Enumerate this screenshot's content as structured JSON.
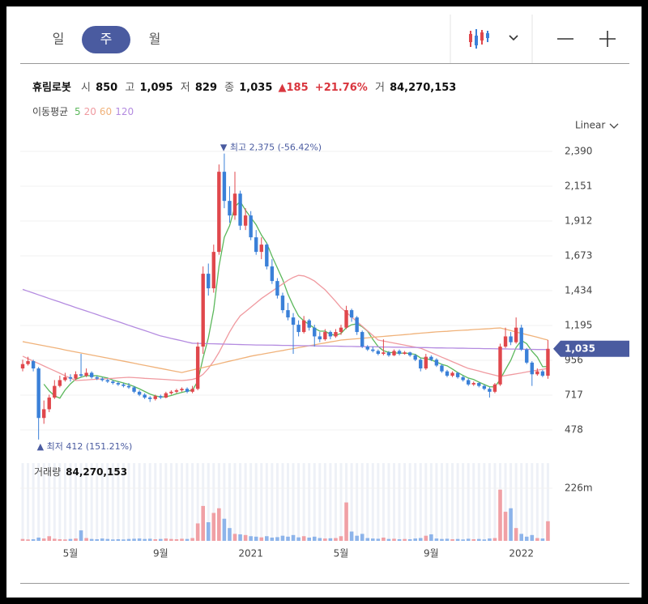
{
  "header": {
    "tabs": [
      "일",
      "주",
      "월"
    ]
  },
  "info": {
    "name": "휴림로봇",
    "open_label": "시",
    "open": "850",
    "high_label": "고",
    "high": "1,095",
    "low_label": "저",
    "low": "829",
    "close_label": "종",
    "close": "1,035",
    "change": "▲185",
    "change_pct": "+21.76%",
    "volume_label": "거",
    "volume": "84,270,153"
  },
  "chart_data": {
    "type": "candlestick",
    "scale_label": "Linear",
    "up_color": "#e0474c",
    "down_color": "#3a80d8",
    "categories": [
      null,
      null,
      null,
      null,
      null,
      null,
      null,
      null,
      null,
      "5월",
      null,
      null,
      null,
      null,
      null,
      null,
      null,
      null,
      null,
      null,
      null,
      null,
      null,
      null,
      null,
      null,
      "9월",
      null,
      null,
      null,
      null,
      null,
      null,
      null,
      null,
      null,
      null,
      null,
      null,
      null,
      null,
      null,
      null,
      "2021",
      null,
      null,
      null,
      null,
      null,
      null,
      null,
      null,
      null,
      null,
      null,
      null,
      null,
      null,
      null,
      null,
      "5월",
      null,
      null,
      null,
      null,
      null,
      null,
      null,
      null,
      null,
      null,
      null,
      null,
      null,
      null,
      null,
      null,
      "9월",
      null,
      null,
      null,
      null,
      null,
      null,
      null,
      null,
      null,
      null,
      null,
      null,
      null,
      null,
      null,
      null,
      "2022",
      null,
      null,
      null,
      null,
      null
    ],
    "ohlc": [
      [
        900,
        960,
        880,
        930
      ],
      [
        930,
        980,
        920,
        950
      ],
      [
        950,
        960,
        880,
        900
      ],
      [
        900,
        910,
        412,
        560
      ],
      [
        560,
        680,
        520,
        620
      ],
      [
        620,
        720,
        600,
        700
      ],
      [
        700,
        820,
        690,
        780
      ],
      [
        780,
        850,
        770,
        820
      ],
      [
        820,
        870,
        810,
        840
      ],
      [
        840,
        860,
        810,
        830
      ],
      [
        830,
        880,
        820,
        860
      ],
      [
        860,
        1000,
        840,
        850
      ],
      [
        850,
        900,
        840,
        870
      ],
      [
        870,
        880,
        830,
        840
      ],
      [
        840,
        850,
        820,
        830
      ],
      [
        830,
        840,
        810,
        820
      ],
      [
        820,
        830,
        800,
        810
      ],
      [
        810,
        820,
        790,
        800
      ],
      [
        800,
        810,
        780,
        790
      ],
      [
        790,
        800,
        770,
        780
      ],
      [
        780,
        800,
        760,
        770
      ],
      [
        770,
        780,
        730,
        740
      ],
      [
        740,
        750,
        710,
        720
      ],
      [
        720,
        730,
        690,
        700
      ],
      [
        700,
        710,
        670,
        690
      ],
      [
        690,
        720,
        680,
        710
      ],
      [
        710,
        720,
        690,
        700
      ],
      [
        700,
        740,
        695,
        730
      ],
      [
        730,
        750,
        720,
        740
      ],
      [
        740,
        760,
        730,
        750
      ],
      [
        750,
        770,
        740,
        760
      ],
      [
        760,
        770,
        730,
        740
      ],
      [
        740,
        780,
        730,
        760
      ],
      [
        760,
        1080,
        750,
        1050
      ],
      [
        1050,
        1600,
        1000,
        1550
      ],
      [
        1550,
        1620,
        1400,
        1450
      ],
      [
        1450,
        1750,
        1420,
        1700
      ],
      [
        1700,
        2300,
        1680,
        2250
      ],
      [
        2250,
        2375,
        2000,
        2050
      ],
      [
        2050,
        2150,
        1900,
        1950
      ],
      [
        1950,
        2250,
        1920,
        2100
      ],
      [
        2100,
        2120,
        1850,
        1880
      ],
      [
        1880,
        2000,
        1850,
        1950
      ],
      [
        1950,
        1980,
        1780,
        1800
      ],
      [
        1800,
        1850,
        1680,
        1700
      ],
      [
        1700,
        1800,
        1650,
        1750
      ],
      [
        1750,
        1760,
        1580,
        1600
      ],
      [
        1600,
        1650,
        1480,
        1500
      ],
      [
        1500,
        1520,
        1380,
        1400
      ],
      [
        1400,
        1420,
        1280,
        1300
      ],
      [
        1300,
        1350,
        1230,
        1250
      ],
      [
        1250,
        1280,
        1000,
        1200
      ],
      [
        1200,
        1230,
        1120,
        1150
      ],
      [
        1150,
        1260,
        1140,
        1230
      ],
      [
        1230,
        1240,
        1160,
        1180
      ],
      [
        1180,
        1200,
        1050,
        1120
      ],
      [
        1120,
        1150,
        1080,
        1100
      ],
      [
        1100,
        1170,
        1090,
        1150
      ],
      [
        1150,
        1160,
        1100,
        1120
      ],
      [
        1120,
        1170,
        1110,
        1150
      ],
      [
        1150,
        1200,
        1130,
        1180
      ],
      [
        1180,
        1330,
        1170,
        1300
      ],
      [
        1300,
        1310,
        1220,
        1250
      ],
      [
        1250,
        1260,
        1130,
        1150
      ],
      [
        1150,
        1160,
        1040,
        1050
      ],
      [
        1050,
        1060,
        1020,
        1030
      ],
      [
        1030,
        1050,
        1010,
        1020
      ],
      [
        1020,
        1030,
        990,
        1000
      ],
      [
        1000,
        1100,
        990,
        1010
      ],
      [
        1010,
        1020,
        980,
        990
      ],
      [
        990,
        1030,
        985,
        1020
      ],
      [
        1020,
        1030,
        990,
        1000
      ],
      [
        1000,
        1020,
        995,
        1010
      ],
      [
        1010,
        1015,
        980,
        990
      ],
      [
        990,
        1000,
        950,
        960
      ],
      [
        960,
        970,
        880,
        900
      ],
      [
        900,
        1000,
        890,
        980
      ],
      [
        980,
        990,
        950,
        960
      ],
      [
        960,
        970,
        910,
        920
      ],
      [
        920,
        930,
        870,
        880
      ],
      [
        880,
        890,
        840,
        850
      ],
      [
        850,
        880,
        840,
        870
      ],
      [
        870,
        875,
        830,
        840
      ],
      [
        840,
        850,
        810,
        820
      ],
      [
        820,
        830,
        780,
        790
      ],
      [
        790,
        810,
        780,
        800
      ],
      [
        800,
        805,
        770,
        780
      ],
      [
        780,
        790,
        750,
        760
      ],
      [
        760,
        770,
        700,
        740
      ],
      [
        740,
        800,
        730,
        790
      ],
      [
        790,
        1070,
        780,
        1050
      ],
      [
        1050,
        1180,
        1040,
        1120
      ],
      [
        1120,
        1150,
        1060,
        1080
      ],
      [
        1080,
        1250,
        1070,
        1180
      ],
      [
        1180,
        1200,
        1020,
        1030
      ],
      [
        1030,
        1040,
        930,
        940
      ],
      [
        940,
        950,
        780,
        860
      ],
      [
        860,
        900,
        850,
        880
      ],
      [
        880,
        890,
        840,
        850
      ],
      [
        850,
        1095,
        829,
        1035
      ]
    ],
    "ylim": [
      289,
      2512
    ],
    "yticks": [
      478,
      717,
      956,
      {
        "value": 1195,
        "label": "1,195"
      },
      {
        "value": 1434,
        "label": "1,434"
      },
      {
        "value": 1673,
        "label": "1,673"
      },
      {
        "value": 1912,
        "label": "1,912"
      },
      {
        "value": 2151,
        "label": "2,151"
      },
      {
        "value": 2390,
        "label": "2,390"
      }
    ],
    "grid": true,
    "ma_title": "이동평균",
    "series": [
      {
        "name": "5",
        "color": "#5cb85c",
        "values": [
          null,
          null,
          null,
          null,
          792,
          746,
          712,
          696,
          752,
          794,
          826,
          840,
          850,
          850,
          850,
          842,
          834,
          820,
          810,
          800,
          790,
          776,
          760,
          742,
          724,
          712,
          704,
          706,
          714,
          726,
          736,
          744,
          750,
          812,
          972,
          1110,
          1302,
          1600,
          1800,
          1880,
          2010,
          2046,
          1986,
          1936,
          1886,
          1816,
          1760,
          1670,
          1590,
          1510,
          1410,
          1330,
          1260,
          1226,
          1202,
          1176,
          1156,
          1156,
          1134,
          1128,
          1140,
          1180,
          1200,
          1206,
          1186,
          1156,
          1100,
          1050,
          1022,
          1010,
          1008,
          1004,
          1006,
          1002,
          996,
          972,
          968,
          958,
          944,
          928,
          918,
          896,
          872,
          852,
          834,
          824,
          806,
          790,
          774,
          774,
          824,
          892,
          956,
          1044,
          1092,
          1070,
          1018,
          978,
          912,
          913
        ]
      },
      {
        "name": "20",
        "color": "#f09aa0",
        "values": [
          984,
          967,
          950,
          934,
          917,
          900,
          884,
          867,
          850,
          834,
          817,
          819,
          821,
          824,
          826,
          828,
          830,
          832,
          835,
          837,
          839,
          837,
          835,
          832,
          830,
          828,
          826,
          824,
          821,
          819,
          817,
          820,
          825,
          835,
          860,
          900,
          950,
          1010,
          1080,
          1150,
          1210,
          1261,
          1290,
          1320,
          1350,
          1380,
          1405,
          1430,
          1455,
          1480,
          1505,
          1525,
          1539,
          1535,
          1520,
          1500,
          1470,
          1440,
          1400,
          1360,
          1317,
          1285,
          1253,
          1222,
          1190,
          1158,
          1127,
          1095,
          1088,
          1081,
          1074,
          1067,
          1060,
          1053,
          1046,
          1039,
          1024,
          1008,
          993,
          977,
          962,
          946,
          931,
          915,
          900,
          891,
          882,
          872,
          863,
          854,
          845,
          851,
          857,
          863,
          869,
          876,
          882,
          888,
          894,
          900
        ]
      },
      {
        "name": "60",
        "color": "#f0b27a",
        "values": [
          1084,
          1077,
          1070,
          1063,
          1056,
          1049,
          1042,
          1035,
          1027,
          1020,
          1013,
          1006,
          999,
          992,
          985,
          978,
          971,
          964,
          957,
          950,
          943,
          936,
          928,
          921,
          914,
          907,
          900,
          893,
          886,
          879,
          872,
          881,
          889,
          898,
          906,
          915,
          924,
          932,
          941,
          950,
          958,
          967,
          975,
          984,
          991,
          997,
          1004,
          1010,
          1017,
          1023,
          1030,
          1036,
          1043,
          1049,
          1056,
          1062,
          1069,
          1075,
          1082,
          1088,
          1095,
          1098,
          1101,
          1104,
          1107,
          1110,
          1114,
          1117,
          1120,
          1123,
          1126,
          1129,
          1132,
          1135,
          1139,
          1142,
          1145,
          1148,
          1151,
          1153,
          1155,
          1158,
          1160,
          1162,
          1164,
          1167,
          1169,
          1171,
          1173,
          1176,
          1178,
          1169,
          1160,
          1150,
          1141,
          1132,
          1123,
          1114,
          1104,
          1095
        ]
      },
      {
        "name": "120",
        "color": "#b48be0",
        "values": [
          1443,
          1430,
          1418,
          1405,
          1393,
          1380,
          1368,
          1356,
          1343,
          1331,
          1318,
          1306,
          1294,
          1282,
          1270,
          1257,
          1245,
          1233,
          1221,
          1209,
          1196,
          1184,
          1172,
          1160,
          1148,
          1135,
          1123,
          1115,
          1106,
          1098,
          1090,
          1081,
          1073,
          1072,
          1071,
          1070,
          1069,
          1068,
          1067,
          1066,
          1065,
          1064,
          1063,
          1062,
          1061,
          1061,
          1060,
          1060,
          1059,
          1058,
          1058,
          1057,
          1057,
          1056,
          1056,
          1055,
          1054,
          1054,
          1053,
          1053,
          1052,
          1051,
          1051,
          1050,
          1050,
          1049,
          1049,
          1048,
          1047,
          1047,
          1046,
          1046,
          1045,
          1044,
          1044,
          1043,
          1043,
          1042,
          1041,
          1041,
          1040,
          1040,
          1039,
          1039,
          1038,
          1037,
          1037,
          1036,
          1036,
          1035,
          1034,
          1034,
          1033,
          1033,
          1032,
          1031,
          1031,
          1030,
          1030,
          1030
        ]
      }
    ],
    "high_annotation": "▼ 최고 2,375 (-56.42%)",
    "low_annotation": "▲ 최저 412 (151.21%)",
    "last_price": {
      "value": 1035,
      "label": "1,035"
    },
    "last_price_color": "#4a5ba0",
    "volume": {
      "title": "거래량",
      "total": "84,270,153",
      "values": [
        8,
        6,
        7,
        14,
        10,
        20,
        9,
        7,
        6,
        8,
        10,
        45,
        12,
        8,
        7,
        10,
        8,
        6,
        7,
        6,
        8,
        9,
        10,
        8,
        9,
        7,
        8,
        10,
        8,
        7,
        9,
        8,
        12,
        75,
        150,
        80,
        120,
        140,
        95,
        55,
        30,
        28,
        25,
        20,
        18,
        15,
        20,
        14,
        16,
        22,
        18,
        25,
        15,
        20,
        14,
        18,
        12,
        10,
        11,
        12,
        20,
        165,
        40,
        22,
        30,
        12,
        10,
        9,
        14,
        8,
        9,
        7,
        8,
        7,
        10,
        12,
        22,
        28,
        10,
        8,
        9,
        7,
        8,
        6,
        9,
        7,
        8,
        6,
        10,
        12,
        220,
        125,
        140,
        55,
        30,
        18,
        25,
        12,
        10,
        84.27
      ],
      "up_color": "#f0a0a5",
      "down_color": "#8db4ea",
      "ylim": [
        0,
        334
      ],
      "yticks": [
        {
          "value": 226,
          "label": "226m"
        }
      ]
    }
  }
}
